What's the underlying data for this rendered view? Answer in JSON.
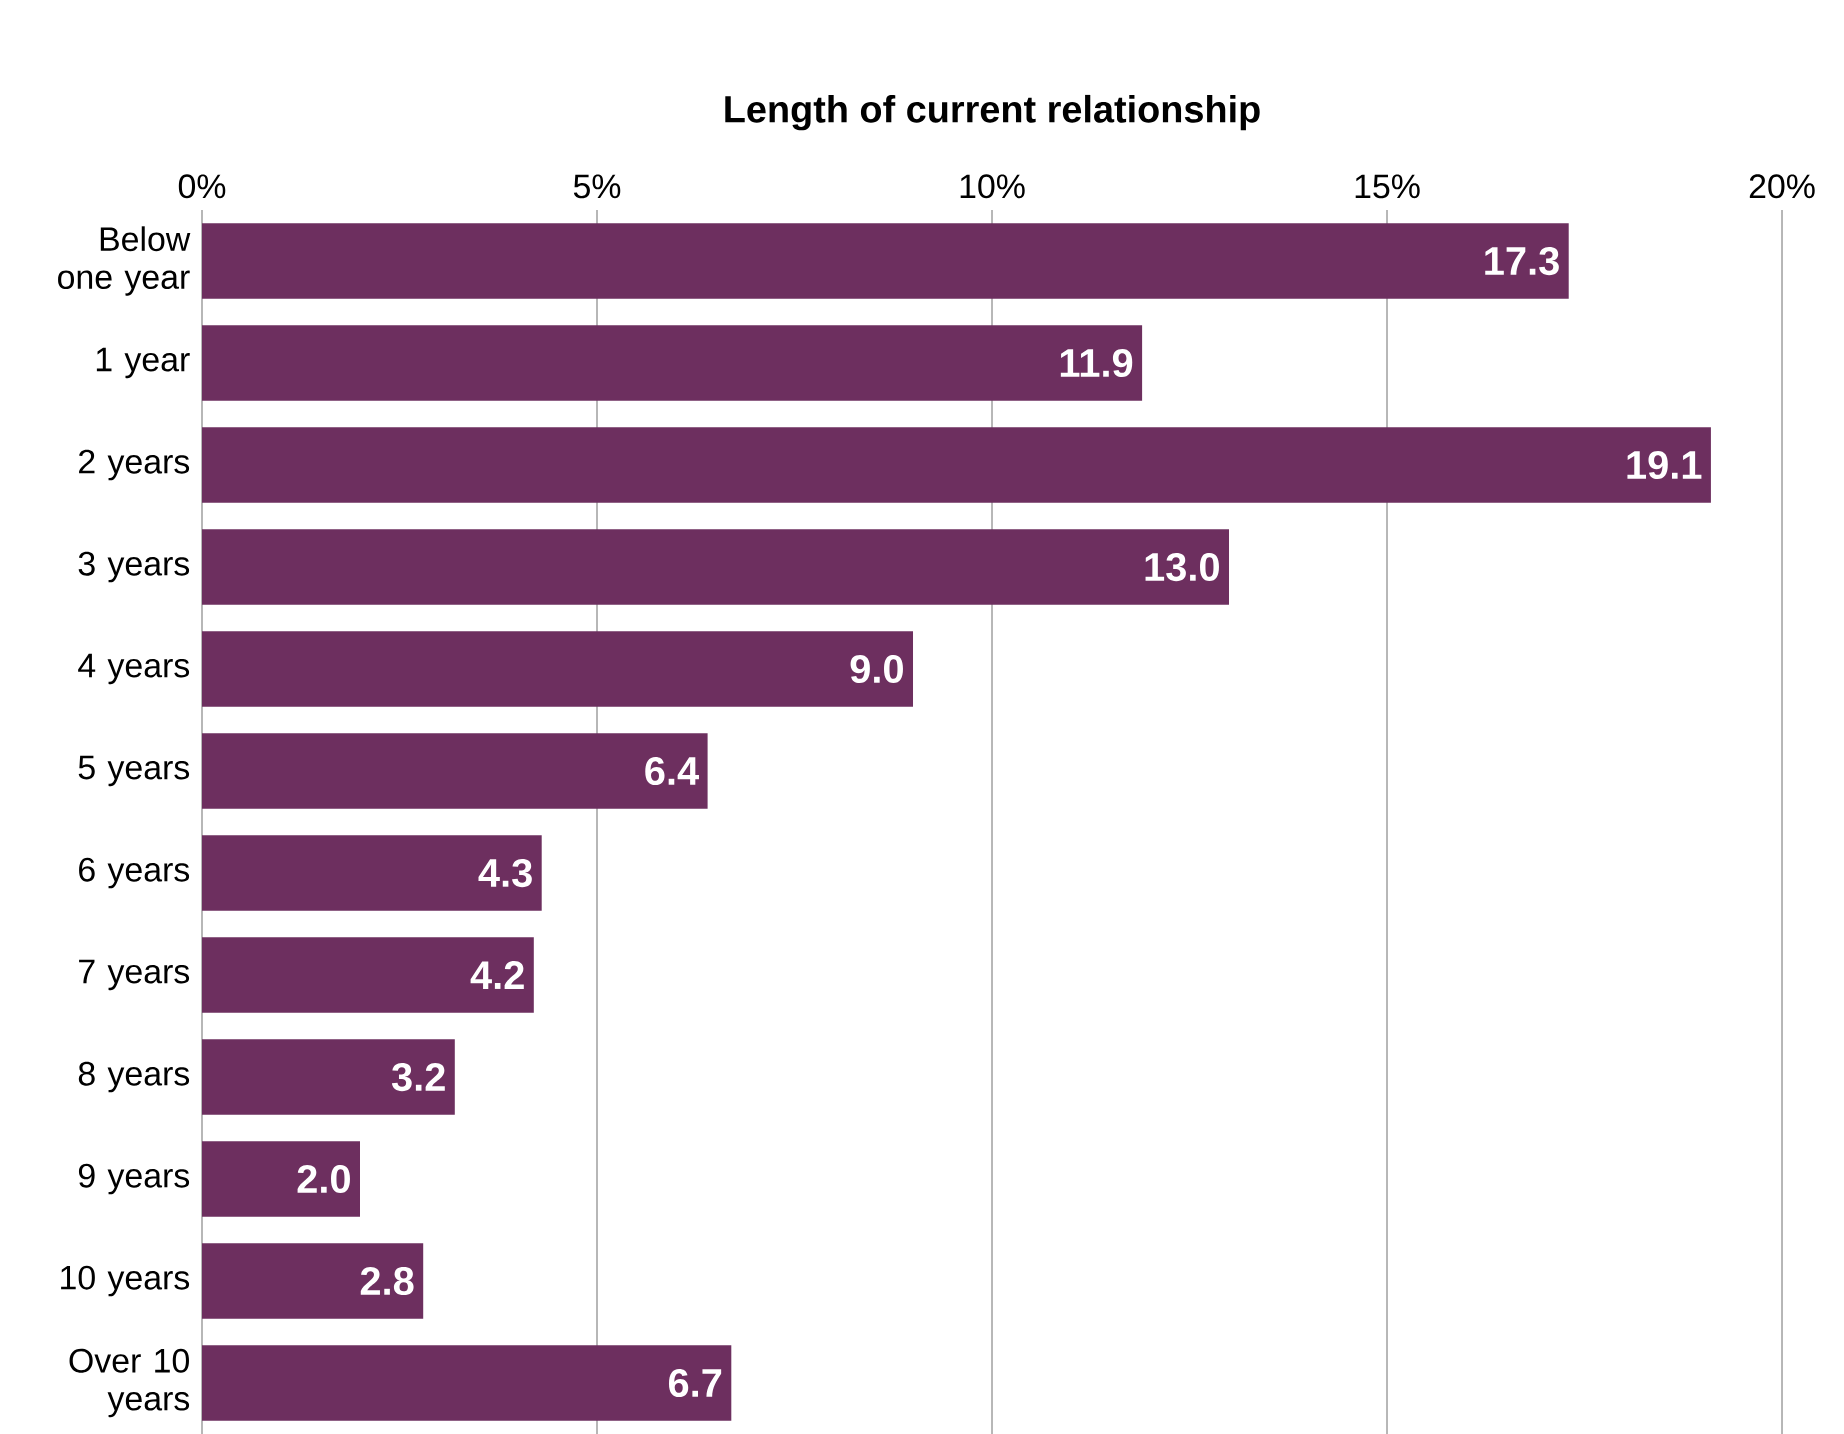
{
  "chart_data": {
    "type": "bar",
    "orientation": "horizontal",
    "title": "Length of current relationship",
    "categories": [
      "Below one year",
      "1 year",
      "2 years",
      "3 years",
      "4 years",
      "5 years",
      "6 years",
      "7 years",
      "8 years",
      "9 years",
      "10 years",
      "Over 10 years"
    ],
    "values": [
      17.3,
      11.9,
      19.1,
      13.0,
      9.0,
      6.4,
      4.3,
      4.2,
      3.2,
      2.0,
      2.8,
      6.7
    ],
    "value_labels": [
      "17.3",
      "11.9",
      "19.1",
      "13.0",
      "9.0",
      "6.4",
      "4.3",
      "4.2",
      "3.2",
      "2.0",
      "2.8",
      "6.7"
    ],
    "color": "#6d2f5f",
    "xlim": [
      0,
      20
    ],
    "xticks": [
      {
        "value": 0,
        "label": "0%"
      },
      {
        "value": 5,
        "label": "5%"
      },
      {
        "value": 10,
        "label": "10%"
      },
      {
        "value": 15,
        "label": "15%"
      },
      {
        "value": 20,
        "label": "20%"
      }
    ],
    "grid": "x"
  }
}
